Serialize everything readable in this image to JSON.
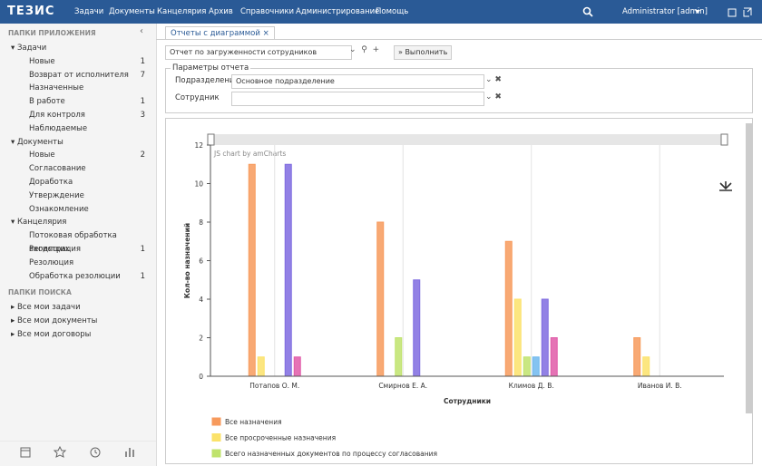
{
  "nav": {
    "logo": "ТЕЗИС",
    "items": [
      "Задачи",
      "Документы",
      "Канцелярия",
      "Архив",
      "Справочники",
      "Администрирование",
      "Помощь"
    ],
    "user": "Administrator [admin]"
  },
  "sidebar": {
    "title": "ПАПКИ ПРИЛОЖЕНИЯ",
    "groups": [
      {
        "label": "Задачи",
        "items": [
          {
            "label": "Новые",
            "count": 1
          },
          {
            "label": "Возврат от исполнителя",
            "count": 7
          },
          {
            "label": "Назначенные"
          },
          {
            "label": "В работе",
            "count": 1
          },
          {
            "label": "Для контроля",
            "count": 3
          },
          {
            "label": "Наблюдаемые"
          }
        ]
      },
      {
        "label": "Документы",
        "items": [
          {
            "label": "Новые",
            "count": 2
          },
          {
            "label": "Согласование"
          },
          {
            "label": "Доработка"
          },
          {
            "label": "Утверждение"
          },
          {
            "label": "Ознакомление"
          }
        ]
      },
      {
        "label": "Канцелярия",
        "items": [
          {
            "label": "Потоковая обработка входящих",
            "count": 1
          },
          {
            "label": "Регистрация"
          },
          {
            "label": "Резолюция"
          },
          {
            "label": "Обработка резолюции",
            "count": 1
          }
        ]
      }
    ],
    "search_title": "ПАПКИ ПОИСКА",
    "search_items": [
      "Все мои задачи",
      "Все мои документы",
      "Все мои договоры"
    ]
  },
  "tab": "Отчеты с диаграммой",
  "report": {
    "selected": "Отчет по загруженности сотрудников",
    "run": "Выполнить",
    "params_title": "Параметры отчета",
    "fields": [
      {
        "label": "Подразделение",
        "value": "Основное подразделение"
      },
      {
        "label": "Сотрудник"
      }
    ]
  },
  "chart_data": {
    "type": "bar",
    "credit": "JS chart by amCharts",
    "y_label": "Кол-во назначений",
    "x_label": "Сотрудники",
    "categories": [
      "Потапов О. М.",
      "Смирнов Е. А.",
      "Климов Д. В.",
      "Иванов И. В."
    ],
    "series": [
      {
        "name": "Все назначения",
        "color": "#f79a5c",
        "values": [
          11,
          8,
          7,
          2
        ]
      },
      {
        "name": "Все просроченные назначения",
        "color": "#fbe26a",
        "values": [
          1,
          0,
          4,
          1
        ]
      },
      {
        "name": "Всего назначенных документов по процессу согласования",
        "color": "#bfe36c",
        "values": [
          0,
          2,
          1,
          0
        ]
      },
      {
        "color": "#6fb8ee",
        "values": [
          0,
          0,
          1,
          0
        ]
      },
      {
        "color": "#7f6be0",
        "values": [
          11,
          5,
          4,
          0
        ]
      },
      {
        "color": "#e05aa8",
        "values": [
          1,
          0,
          2,
          0
        ]
      }
    ],
    "ylim": [
      0,
      12
    ],
    "yticks": [
      0,
      2,
      4,
      6,
      8,
      10,
      12
    ],
    "xgrid": true
  }
}
